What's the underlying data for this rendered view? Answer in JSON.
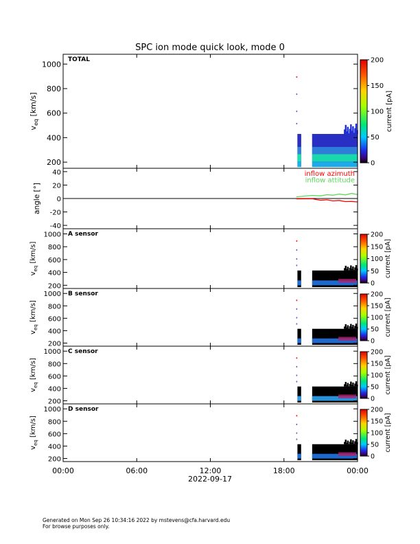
{
  "chart_data": {
    "title": "SPC ion mode quick look, mode 0",
    "date_label": "2022-09-17",
    "x_axis": {
      "ticks": [
        {
          "hour": 0,
          "label": "00:00"
        },
        {
          "hour": 6,
          "label": "06:00"
        },
        {
          "hour": 12,
          "label": "12:00"
        },
        {
          "hour": 18,
          "label": "18:00"
        },
        {
          "hour": 24,
          "label": "00:00"
        }
      ],
      "range_hours": [
        0,
        24
      ]
    },
    "colorbar": {
      "label": "current [pA]",
      "range": [
        0,
        200
      ],
      "ticks_total": [
        0,
        50,
        100,
        150,
        200
      ],
      "ticks_sensor": [
        0,
        50,
        100,
        150,
        200
      ]
    },
    "data_coverage": {
      "isolated_samples_hour": 19.0,
      "strip_hours": [
        19.1,
        19.4
      ],
      "main_hours": [
        20.3,
        24.0
      ]
    },
    "panels": [
      {
        "type": "heatmap",
        "label": "TOTAL",
        "ylabel_main": "v",
        "ylabel_sub": "eq",
        "ylabel_unit": "[km/s]",
        "ylim": [
          150,
          1080
        ],
        "yticks": [
          200,
          400,
          600,
          800,
          1000
        ],
        "bands": [
          {
            "from": 160,
            "to": 205,
            "color": "#1fb0ea"
          },
          {
            "from": 205,
            "to": 265,
            "color": "#19e2aa"
          },
          {
            "from": 265,
            "to": 325,
            "color": "#2f82d8"
          },
          {
            "from": 325,
            "to": 430,
            "color": "#2a2fc2"
          }
        ]
      },
      {
        "type": "line",
        "ylabel": "angle [°]",
        "ylim": [
          -45,
          45
        ],
        "yticks": [
          -40,
          -20,
          0,
          20,
          40
        ],
        "series": [
          {
            "name": "inflow azimuth",
            "color": "#ff0000",
            "hours": [
              19.0,
              20.3,
              21.0,
              21.5,
              22.0,
              22.5,
              23.0,
              23.5,
              24.0
            ],
            "values": [
              0.0,
              -1.0,
              -2.0,
              -2.5,
              -3.0,
              -3.5,
              -4.0,
              -5.0,
              -4.5
            ]
          },
          {
            "name": "inflow attitude",
            "color": "#5ad75a",
            "hours": [
              19.0,
              20.3,
              21.0,
              21.5,
              22.0,
              22.5,
              23.0,
              23.5,
              24.0
            ],
            "values": [
              3.0,
              4.0,
              4.5,
              5.0,
              5.5,
              6.0,
              6.0,
              7.0,
              6.5
            ]
          }
        ]
      },
      {
        "type": "heatmap",
        "label": "A sensor",
        "ylabel_main": "v",
        "ylabel_sub": "eq",
        "ylabel_unit": "[km/s]",
        "ylim": [
          150,
          1080
        ],
        "yticks": [
          200,
          400,
          600,
          800,
          1000
        ],
        "bands": [
          {
            "from": 200,
            "to": 275,
            "color": "#1f6fd8"
          }
        ]
      },
      {
        "type": "heatmap",
        "label": "B sensor",
        "ylabel_main": "v",
        "ylabel_sub": "eq",
        "ylabel_unit": "[km/s]",
        "ylim": [
          150,
          1080
        ],
        "yticks": [
          200,
          400,
          600,
          800,
          1000
        ],
        "bands": [
          {
            "from": 200,
            "to": 275,
            "color": "#1f6fd8"
          }
        ]
      },
      {
        "type": "heatmap",
        "label": "C sensor",
        "ylabel_main": "v",
        "ylabel_sub": "eq",
        "ylabel_unit": "[km/s]",
        "ylim": [
          150,
          1080
        ],
        "yticks": [
          200,
          400,
          600,
          800,
          1000
        ],
        "bands": [
          {
            "from": 200,
            "to": 275,
            "color": "#2a9be6"
          }
        ]
      },
      {
        "type": "heatmap",
        "label": "D sensor",
        "ylabel_main": "v",
        "ylabel_sub": "eq",
        "ylabel_unit": "[km/s]",
        "ylim": [
          150,
          1080
        ],
        "yticks": [
          200,
          400,
          600,
          800,
          1000
        ],
        "bands": [
          {
            "from": 200,
            "to": 275,
            "color": "#1f6fd8"
          }
        ]
      }
    ]
  },
  "footer": {
    "line1": "Generated on Mon Sep 26 10:34:16 2022 by mstevens@cfa.harvard.edu",
    "line2": "For browse purposes only."
  }
}
